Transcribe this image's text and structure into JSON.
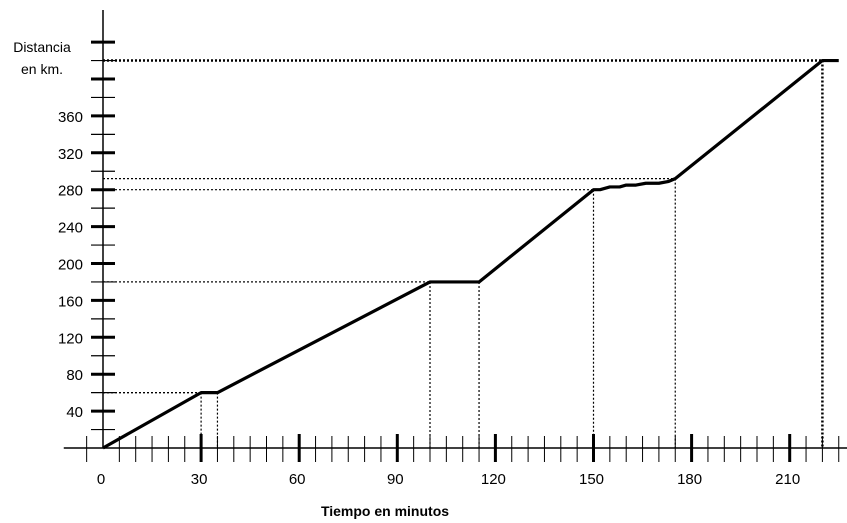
{
  "chart_data": {
    "type": "line",
    "ylabel": [
      "Distancia",
      "en km."
    ],
    "xlabel": "Tiempo en minutos",
    "xlim": [
      0,
      230
    ],
    "ylim": [
      0,
      440
    ],
    "x_tick_labels": [
      0,
      30,
      60,
      90,
      120,
      150,
      180,
      210
    ],
    "y_tick_labels": [
      40,
      80,
      120,
      160,
      200,
      240,
      280,
      320,
      360
    ],
    "series": [
      {
        "x": [
          0,
          30,
          35,
          100,
          115,
          150,
          152,
          155,
          158,
          160,
          163,
          166,
          170,
          173,
          175,
          220,
          225
        ],
        "y": [
          0,
          60,
          60,
          180,
          180,
          280,
          280,
          283,
          283,
          285,
          285,
          287,
          287,
          289,
          292,
          420,
          420
        ]
      }
    ],
    "reference_lines": [
      {
        "x": 30,
        "y": 60
      },
      {
        "x": 35,
        "y": 60
      },
      {
        "x": 100,
        "y": 180
      },
      {
        "x": 115,
        "y": 180
      },
      {
        "x": 150,
        "y": 280
      },
      {
        "x": 175,
        "y": 292
      },
      {
        "x": 220,
        "y": 420
      }
    ],
    "grid": false,
    "colors": {
      "line": "#000000",
      "axis": "#000000"
    }
  }
}
